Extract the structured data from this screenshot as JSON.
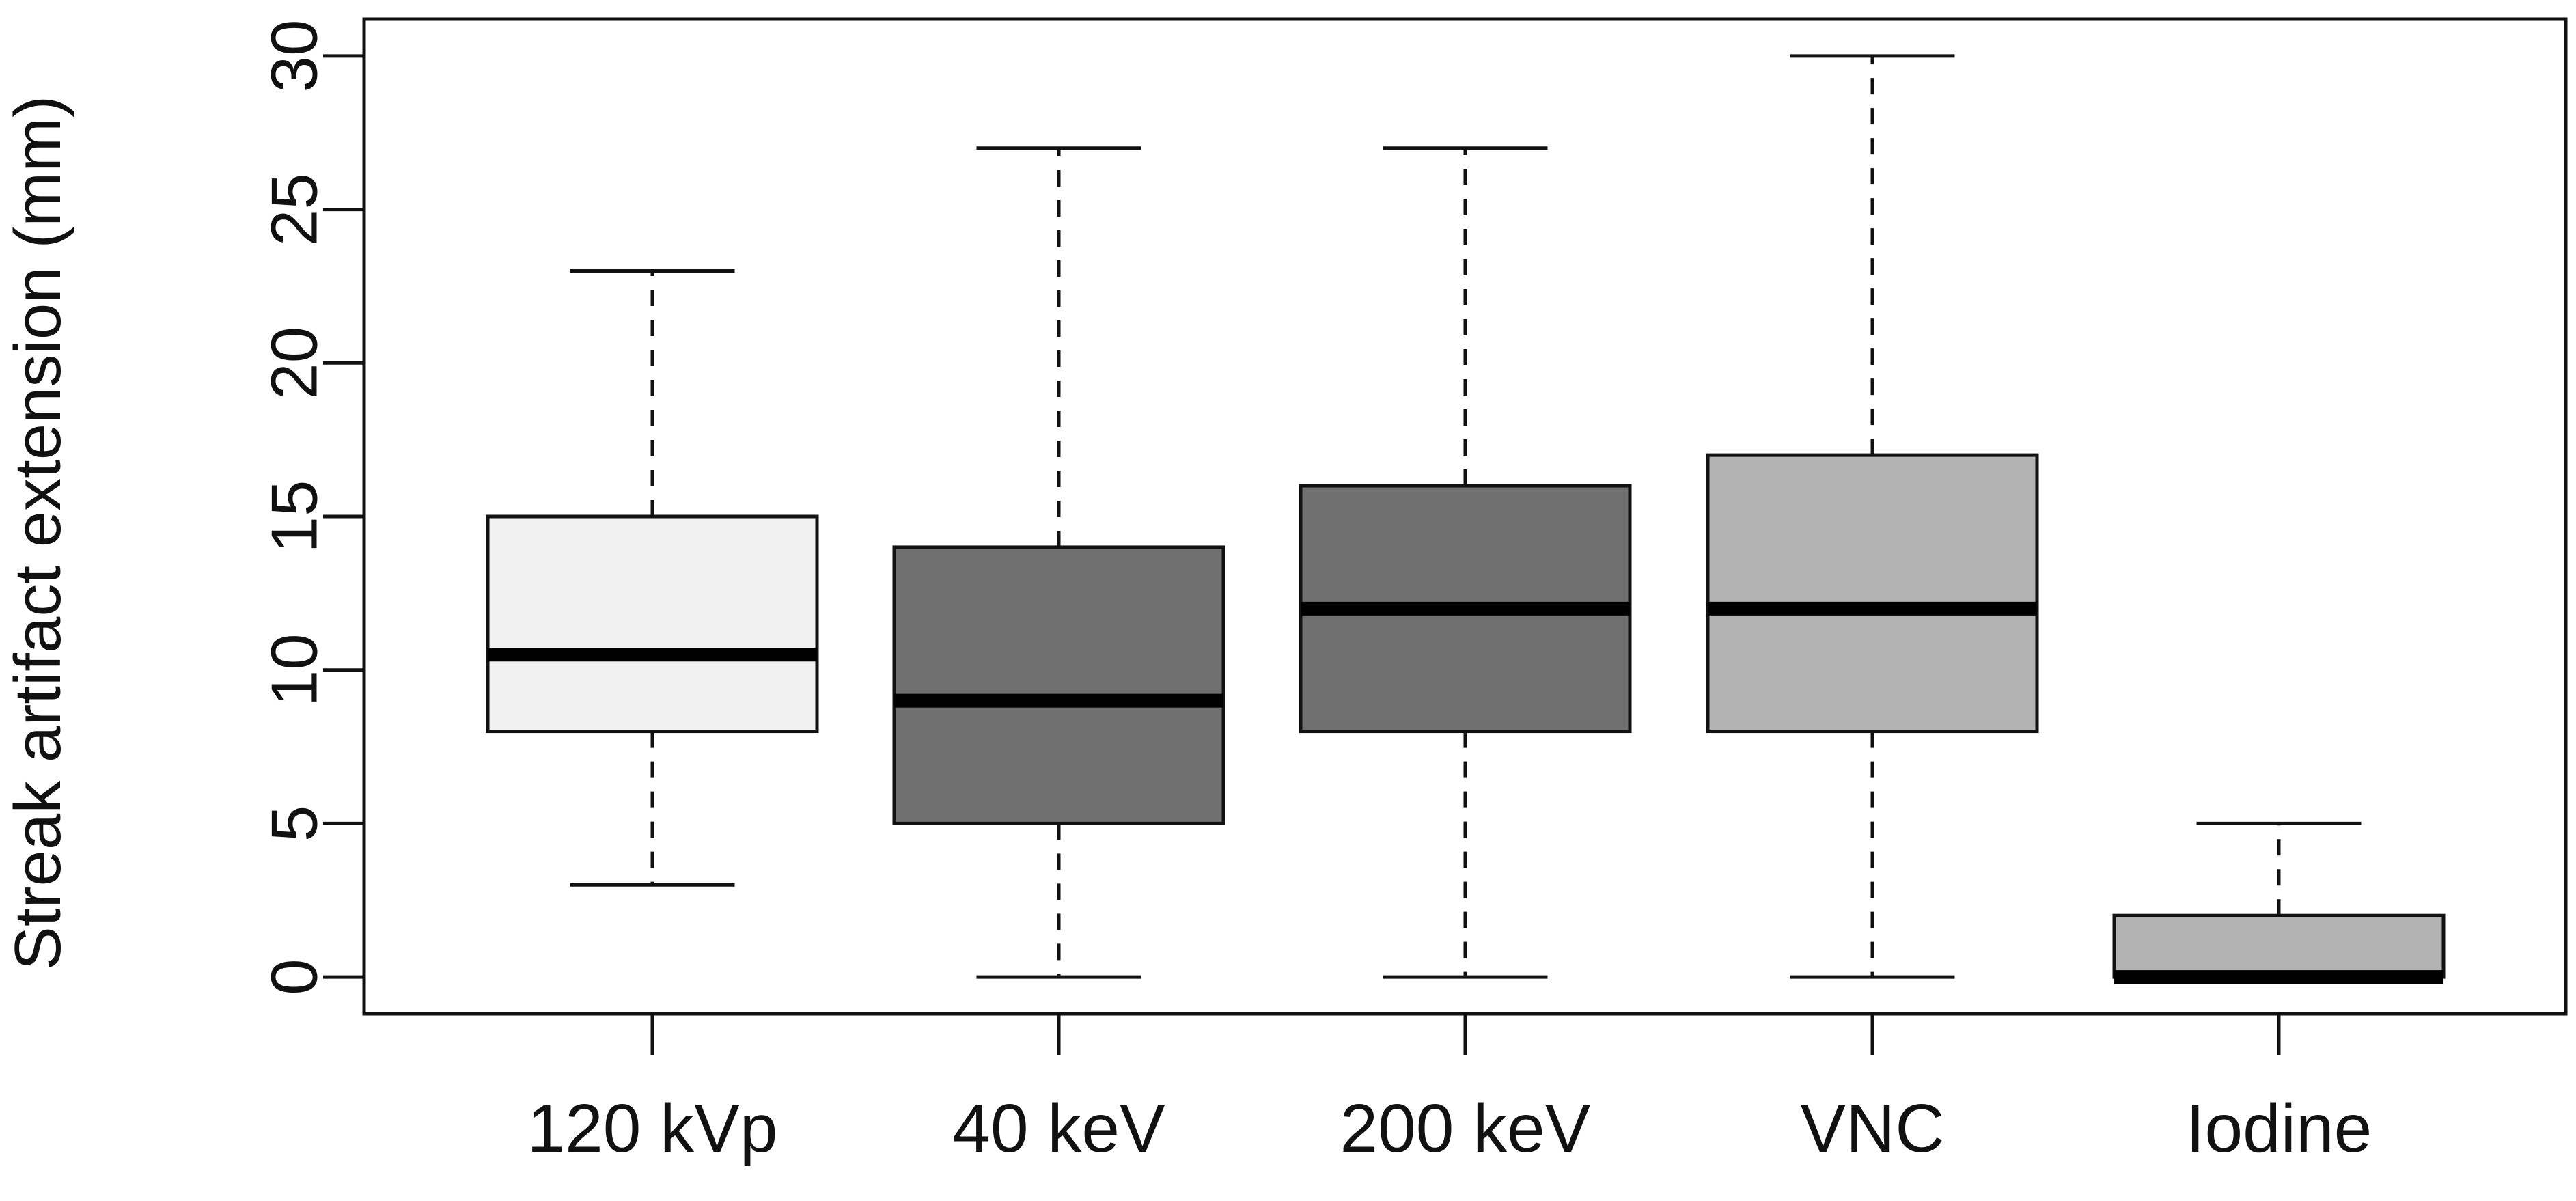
{
  "chart_data": {
    "type": "boxplot",
    "title": "",
    "xlabel": "",
    "ylabel": "Streak artifact extension (mm)",
    "ylim": [
      -1.2,
      31.2
    ],
    "y_ticks": [
      0,
      5,
      10,
      15,
      20,
      25,
      30
    ],
    "y_tick_labels": [
      "0",
      "5",
      "10",
      "15",
      "20",
      "25",
      "30"
    ],
    "grid": false,
    "groups": [
      {
        "label": "120 kVp",
        "min": 3,
        "q1": 8,
        "median": 10.5,
        "q3": 15,
        "max": 23,
        "fill": "#f1f1f1"
      },
      {
        "label": "40 keV",
        "min": 0,
        "q1": 5,
        "median": 9,
        "q3": 14,
        "max": 27,
        "fill": "#707070"
      },
      {
        "label": "200 keV",
        "min": 0,
        "q1": 8,
        "median": 12,
        "q3": 16,
        "max": 27,
        "fill": "#707070"
      },
      {
        "label": "VNC",
        "min": 0,
        "q1": 8,
        "median": 12,
        "q3": 17,
        "max": 30,
        "fill": "#b3b3b3"
      },
      {
        "label": "Iodine",
        "min": 0,
        "q1": 0,
        "median": 0,
        "q3": 2,
        "max": 5,
        "fill": "#b3b3b3"
      }
    ]
  }
}
